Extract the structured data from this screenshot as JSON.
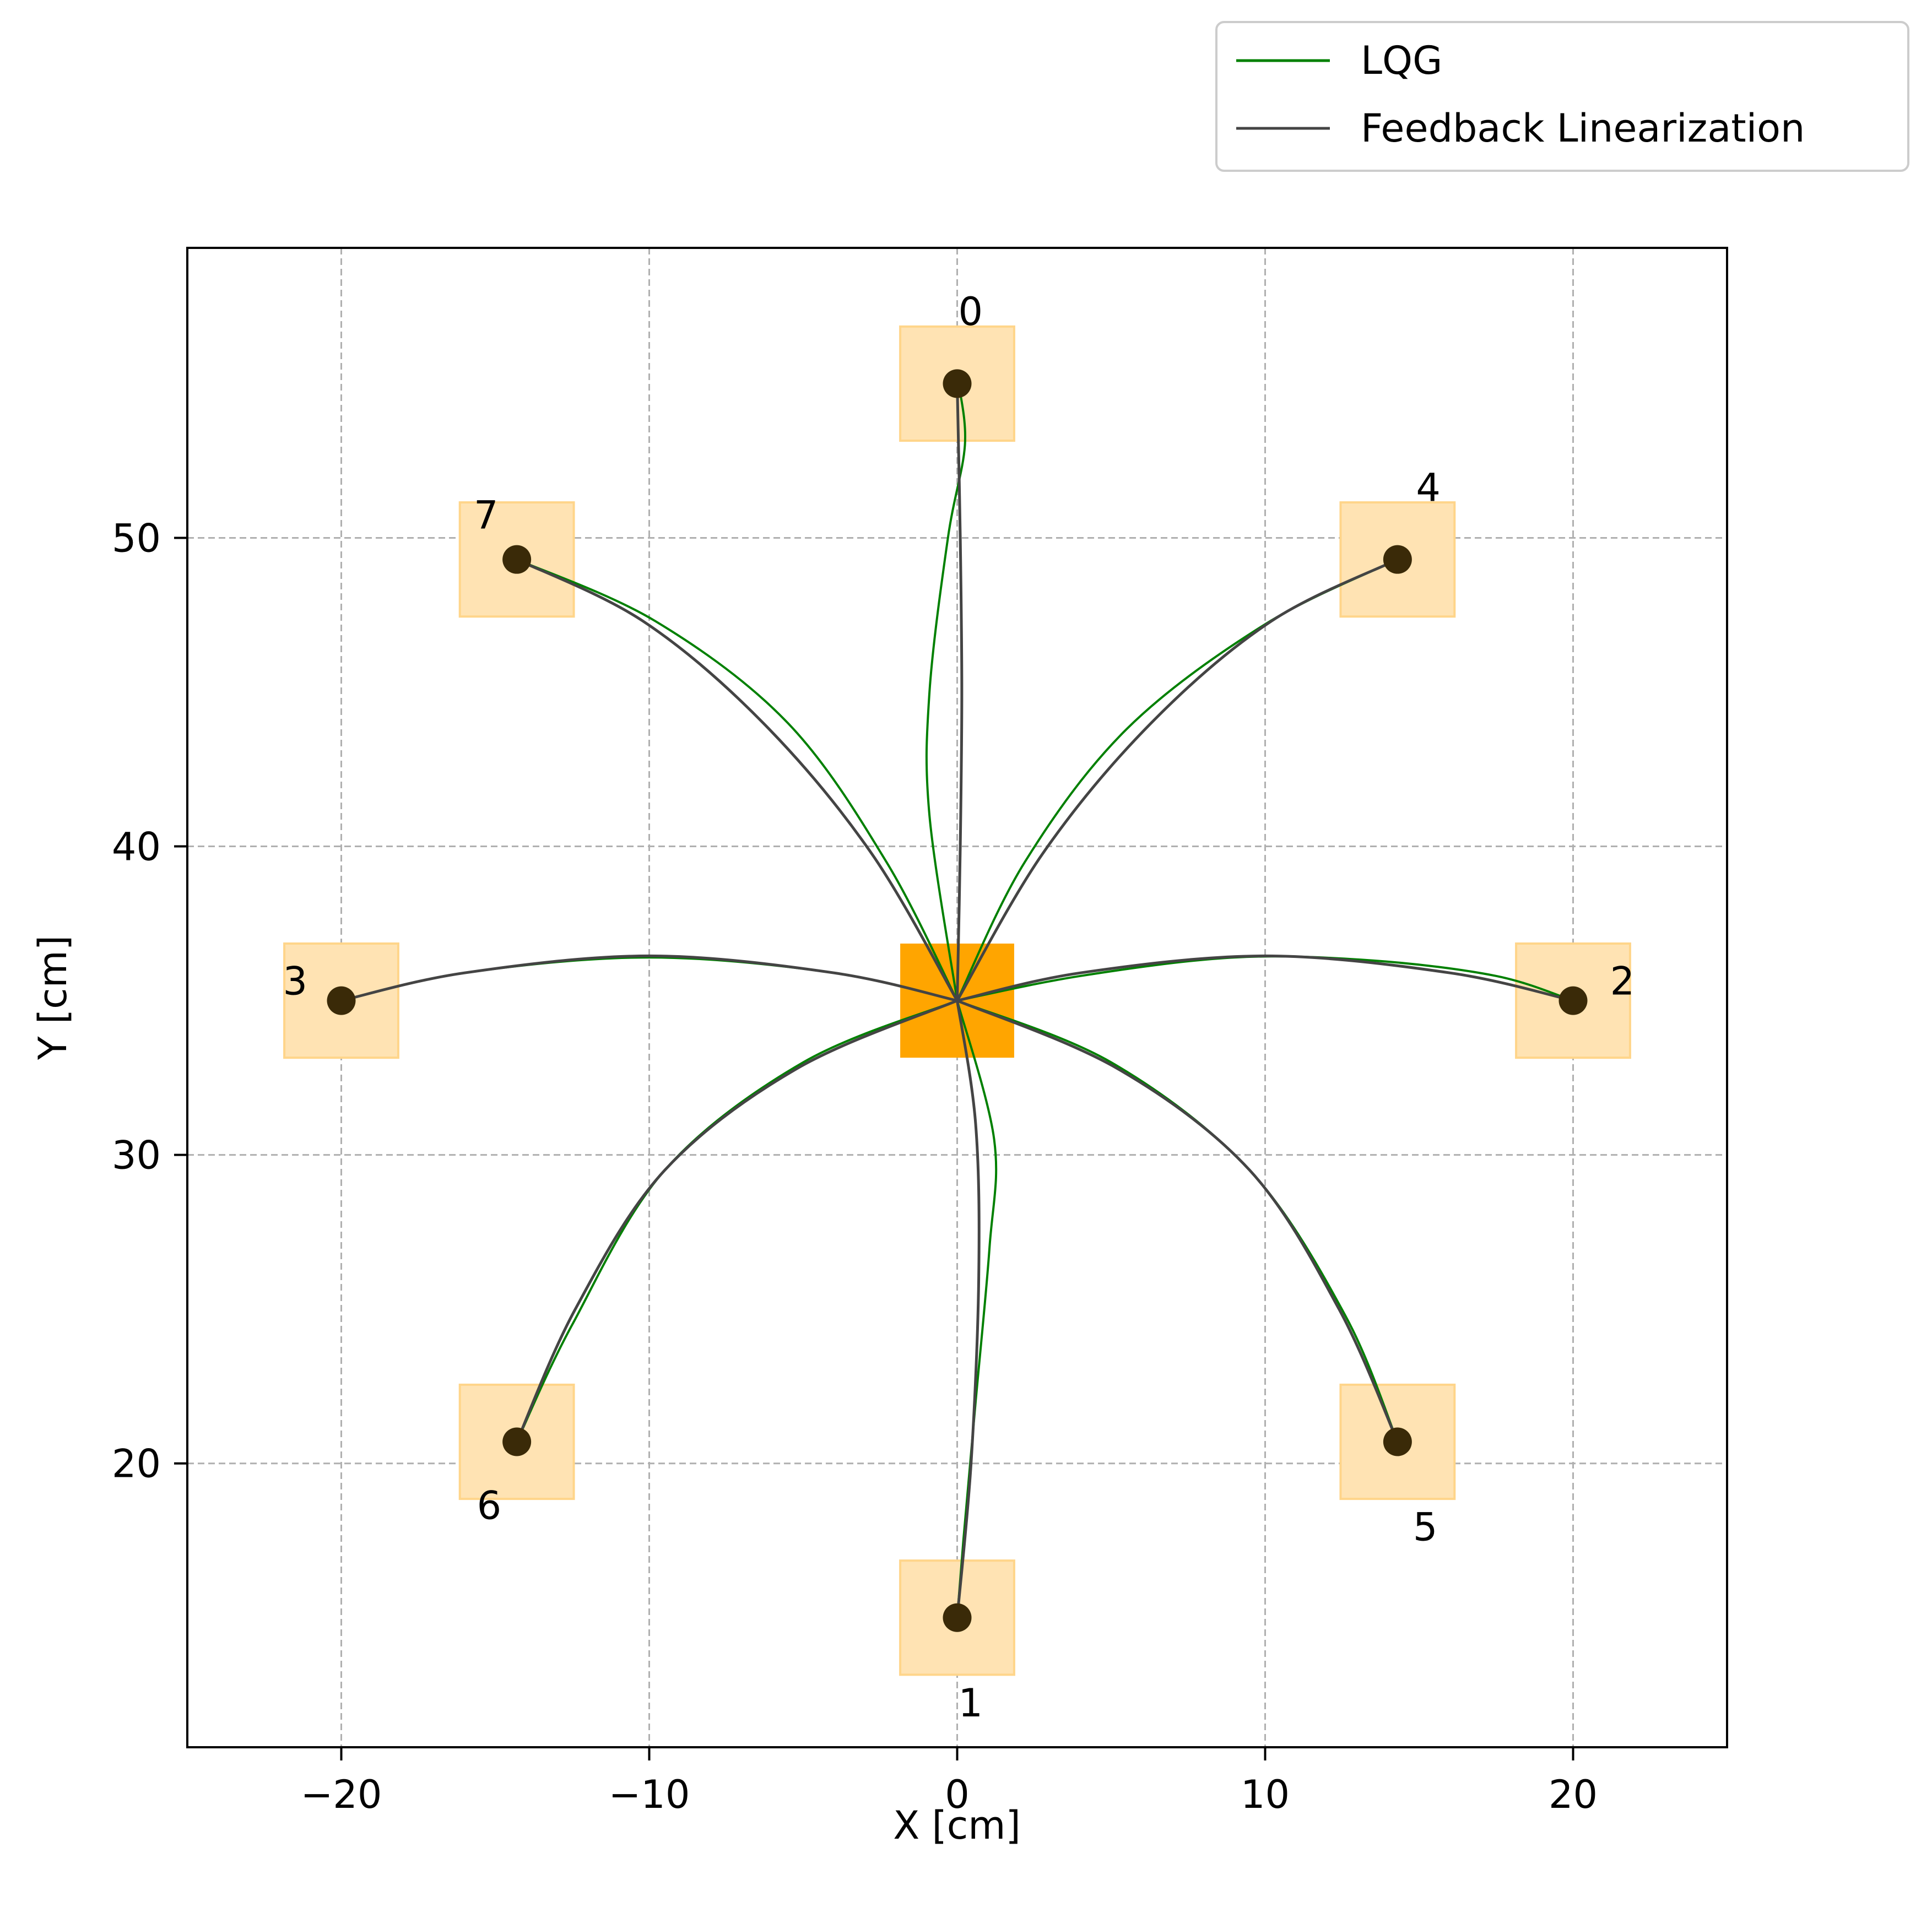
{
  "chart_data": {
    "type": "line",
    "title": "",
    "xlabel": "X [cm]",
    "ylabel": "Y [cm]",
    "xlim": [
      -25,
      25
    ],
    "ylim": [
      10.8,
      59.4
    ],
    "xticks": [
      -20,
      -10,
      0,
      10,
      20
    ],
    "xtick_labels": [
      "−20",
      "−10",
      "0",
      "10",
      "20"
    ],
    "yticks": [
      20,
      30,
      40,
      50
    ],
    "ytick_labels": [
      "20",
      "30",
      "40",
      "50"
    ],
    "grid": true,
    "legend_position": "top-right, outside the axes",
    "legend": [
      {
        "label": "LQG",
        "color": "#008000"
      },
      {
        "label": "Feedback Linearization",
        "color": "#444444"
      }
    ],
    "center": {
      "x": 0,
      "y": 35,
      "half_size": 1.85,
      "color": "#ffa500"
    },
    "target_half_size": 1.85,
    "target_color": "#ffe3b3",
    "target_edge_color": "#ffd58a",
    "marker_color": "#3a2a08",
    "targets": [
      {
        "id": "0",
        "x": 0,
        "y": 55,
        "label_anchor": "above-right"
      },
      {
        "id": "1",
        "x": 0,
        "y": 15,
        "label_anchor": "below-right"
      },
      {
        "id": "2",
        "x": 20,
        "y": 35,
        "label_anchor": "right"
      },
      {
        "id": "3",
        "x": -20,
        "y": 35,
        "label_anchor": "left"
      },
      {
        "id": "4",
        "x": 14.3,
        "y": 49.3,
        "label_anchor": "above-right"
      },
      {
        "id": "5",
        "x": 14.3,
        "y": 20.7,
        "label_anchor": "below-right"
      },
      {
        "id": "6",
        "x": -14.3,
        "y": 20.7,
        "label_anchor": "below-left"
      },
      {
        "id": "7",
        "x": -14.3,
        "y": 49.3,
        "label_anchor": "above-left"
      }
    ],
    "series": [
      {
        "name": "LQG",
        "color": "#008000",
        "paths": [
          [
            [
              0,
              35
            ],
            [
              -0.9,
              41
            ],
            [
              -0.9,
              45
            ],
            [
              -0.3,
              50
            ],
            [
              0.25,
              53
            ],
            [
              0.05,
              55
            ]
          ],
          [
            [
              0,
              35
            ],
            [
              1.2,
              30.5
            ],
            [
              1.05,
              27
            ],
            [
              0.6,
              22
            ],
            [
              0.2,
              17.5
            ],
            [
              0,
              15
            ]
          ],
          [
            [
              0,
              35
            ],
            [
              4,
              35.8
            ],
            [
              9,
              36.4
            ],
            [
              13.5,
              36.3
            ],
            [
              17.5,
              35.8
            ],
            [
              20,
              35
            ]
          ],
          [
            [
              0,
              35
            ],
            [
              -4,
              35.9
            ],
            [
              -10,
              36.4
            ],
            [
              -16,
              35.9
            ],
            [
              -20,
              35
            ]
          ],
          [
            [
              0,
              35
            ],
            [
              2.2,
              39.5
            ],
            [
              5.5,
              43.8
            ],
            [
              10,
              47.2
            ],
            [
              14.3,
              49.3
            ]
          ],
          [
            [
              0,
              35
            ],
            [
              5,
              33
            ],
            [
              9.5,
              29.5
            ],
            [
              12.6,
              24.8
            ],
            [
              14.3,
              20.7
            ]
          ],
          [
            [
              0,
              35
            ],
            [
              -5,
              33
            ],
            [
              -9.5,
              29.5
            ],
            [
              -12.5,
              24.5
            ],
            [
              -14.3,
              20.7
            ]
          ],
          [
            [
              0,
              35
            ],
            [
              -2.3,
              39.5
            ],
            [
              -5.5,
              44
            ],
            [
              -9.8,
              47.3
            ],
            [
              -14.3,
              49.3
            ]
          ]
        ]
      },
      {
        "name": "Feedback Linearization",
        "color": "#444444",
        "paths": [
          [
            [
              0,
              35
            ],
            [
              0.1,
              40
            ],
            [
              0.15,
              45
            ],
            [
              0.1,
              50
            ],
            [
              0,
              55
            ]
          ],
          [
            [
              0,
              35
            ],
            [
              0.6,
              31
            ],
            [
              0.7,
              26
            ],
            [
              0.45,
              20
            ],
            [
              0,
              15
            ]
          ],
          [
            [
              0,
              35
            ],
            [
              4,
              35.9
            ],
            [
              10,
              36.45
            ],
            [
              16,
              35.9
            ],
            [
              20,
              35
            ]
          ],
          [
            [
              0,
              35
            ],
            [
              -4,
              35.9
            ],
            [
              -10,
              36.45
            ],
            [
              -16,
              35.9
            ],
            [
              -20,
              35
            ]
          ],
          [
            [
              0,
              35
            ],
            [
              2.8,
              39.8
            ],
            [
              6.3,
              44
            ],
            [
              10.2,
              47.3
            ],
            [
              14.3,
              49.3
            ]
          ],
          [
            [
              0,
              35
            ],
            [
              5.2,
              32.8
            ],
            [
              9.5,
              29.5
            ],
            [
              12.4,
              25
            ],
            [
              14.3,
              20.7
            ]
          ],
          [
            [
              0,
              35
            ],
            [
              -5.2,
              32.8
            ],
            [
              -9.5,
              29.5
            ],
            [
              -12.4,
              25
            ],
            [
              -14.3,
              20.7
            ]
          ],
          [
            [
              0,
              35
            ],
            [
              -2.8,
              39.8
            ],
            [
              -6.3,
              44
            ],
            [
              -10.2,
              47.3
            ],
            [
              -14.3,
              49.3
            ]
          ]
        ]
      }
    ]
  }
}
